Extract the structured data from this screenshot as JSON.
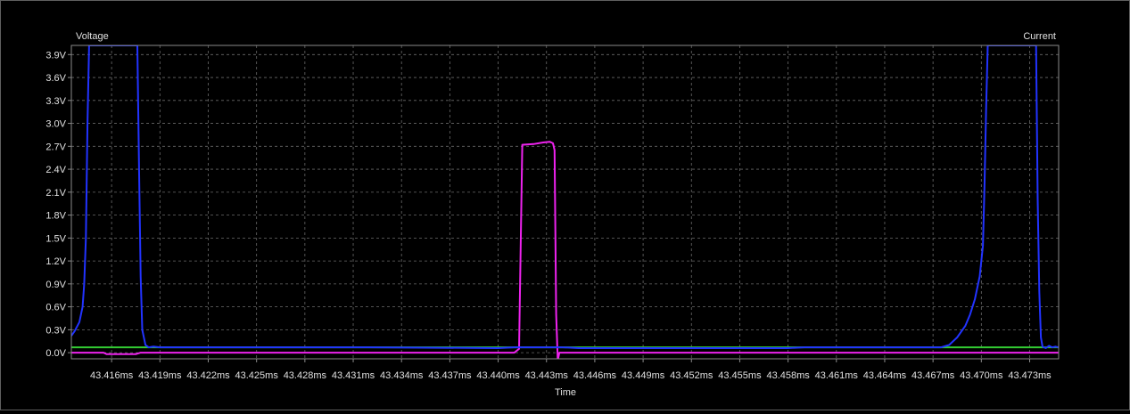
{
  "chart_data": {
    "type": "line",
    "left_axis_label": "Voltage",
    "right_axis_label": "Current",
    "xlabel": "Time",
    "x_unit": "ms",
    "xlim": [
      43.4135,
      43.4748
    ],
    "ylim": [
      -0.08,
      4.02
    ],
    "y_ticks": [
      "0.0V",
      "0.3V",
      "0.6V",
      "0.9V",
      "1.2V",
      "1.5V",
      "1.8V",
      "2.1V",
      "2.4V",
      "2.7V",
      "3.0V",
      "3.3V",
      "3.6V",
      "3.9V"
    ],
    "y_tick_values": [
      0.0,
      0.3,
      0.6,
      0.9,
      1.2,
      1.5,
      1.8,
      2.1,
      2.4,
      2.7,
      3.0,
      3.3,
      3.6,
      3.9
    ],
    "x_ticks": [
      "43.416ms",
      "43.419ms",
      "43.422ms",
      "43.425ms",
      "43.428ms",
      "43.431ms",
      "43.434ms",
      "43.437ms",
      "43.440ms",
      "43.443ms",
      "43.446ms",
      "43.449ms",
      "43.452ms",
      "43.455ms",
      "43.458ms",
      "43.461ms",
      "43.464ms",
      "43.467ms",
      "43.470ms",
      "43.473ms"
    ],
    "x_tick_values": [
      43.416,
      43.419,
      43.422,
      43.425,
      43.428,
      43.431,
      43.434,
      43.437,
      43.44,
      43.443,
      43.446,
      43.449,
      43.452,
      43.455,
      43.458,
      43.461,
      43.464,
      43.467,
      43.47,
      43.473
    ],
    "grid": true,
    "background": "#000000",
    "series": [
      {
        "color": "#33cc33",
        "x": [
          43.4135,
          43.4748
        ],
        "y": [
          0.07,
          0.07
        ]
      },
      {
        "color": "#ee22ee",
        "x": [
          43.4135,
          43.4155,
          43.4157,
          43.4175,
          43.4178,
          43.42,
          43.441,
          43.4413,
          43.4415,
          43.4422,
          43.4428,
          43.4432,
          43.4434,
          43.4435,
          43.4436,
          43.4437,
          43.4438,
          43.445,
          43.4748
        ],
        "y": [
          0.0,
          0.0,
          -0.02,
          -0.02,
          0.0,
          0.0,
          0.0,
          0.05,
          2.72,
          2.73,
          2.75,
          2.76,
          2.74,
          2.65,
          0.5,
          -0.1,
          0.0,
          0.0,
          0.0
        ]
      },
      {
        "color": "#2233ff",
        "x": [
          43.4135,
          43.4137,
          43.414,
          43.4142,
          43.4143,
          43.4144,
          43.4145,
          43.4146,
          43.4176,
          43.4177,
          43.4178,
          43.4179,
          43.4181,
          43.4183,
          43.4186,
          43.419,
          43.42,
          43.432,
          43.44,
          43.441,
          43.444,
          43.445,
          43.458,
          43.459,
          43.466,
          43.4675,
          43.468,
          43.4685,
          43.469,
          43.4693,
          43.4696,
          43.4699,
          43.4701,
          43.4702,
          43.4703,
          43.4704,
          43.4734,
          43.4735,
          43.4736,
          43.4737,
          43.4738,
          43.474,
          43.4742,
          43.4744,
          43.4746,
          43.4748
        ],
        "y": [
          0.22,
          0.28,
          0.4,
          0.6,
          0.9,
          1.5,
          3.0,
          4.02,
          4.02,
          2.5,
          1.0,
          0.3,
          0.1,
          0.07,
          0.08,
          0.07,
          0.07,
          0.07,
          0.06,
          0.07,
          0.07,
          0.06,
          0.06,
          0.07,
          0.07,
          0.07,
          0.1,
          0.2,
          0.35,
          0.5,
          0.7,
          1.0,
          1.4,
          2.2,
          3.2,
          4.02,
          4.02,
          2.0,
          0.8,
          0.2,
          0.08,
          0.06,
          0.09,
          0.07,
          0.08,
          0.07
        ]
      }
    ]
  }
}
